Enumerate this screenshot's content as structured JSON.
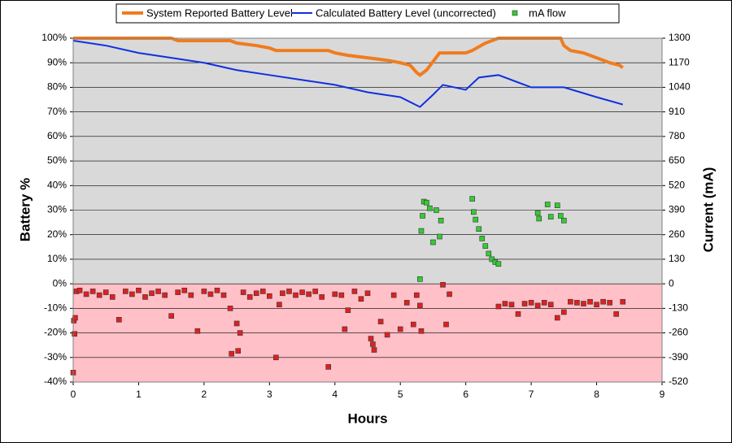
{
  "chart_data": {
    "type": "line",
    "xlabel": "Hours",
    "ylabel": "Battery %",
    "y2label": "Current (mA)",
    "xlim": [
      0,
      9
    ],
    "xticks": [
      0,
      1,
      2,
      3,
      4,
      5,
      6,
      7,
      8,
      9
    ],
    "ylim": [
      -40,
      100
    ],
    "yticks": [
      {
        "value": -40,
        "label": "-40%"
      },
      {
        "value": -30,
        "label": "-30%"
      },
      {
        "value": -20,
        "label": "-20%"
      },
      {
        "value": -10,
        "label": "-10%"
      },
      {
        "value": 0,
        "label": "0%"
      },
      {
        "value": 10,
        "label": "10%"
      },
      {
        "value": 20,
        "label": "20%"
      },
      {
        "value": 30,
        "label": "30%"
      },
      {
        "value": 40,
        "label": "40%"
      },
      {
        "value": 50,
        "label": "50%"
      },
      {
        "value": 60,
        "label": "60%"
      },
      {
        "value": 70,
        "label": "70%"
      },
      {
        "value": 80,
        "label": "80%"
      },
      {
        "value": 90,
        "label": "90%"
      },
      {
        "value": 100,
        "label": "100%"
      }
    ],
    "y2lim": [
      -520,
      1300
    ],
    "y2ticks": [
      -520,
      -390,
      -260,
      -130,
      0,
      130,
      260,
      390,
      520,
      650,
      780,
      910,
      1040,
      1170,
      1300
    ],
    "grid": true,
    "legend": "top",
    "series": [
      {
        "name": "System Reported Battery Level",
        "type": "line",
        "color": "#f07c1e",
        "x": [
          0,
          0.5,
          1,
          1.5,
          1.6,
          2,
          2.4,
          2.5,
          2.8,
          3.0,
          3.1,
          3.5,
          3.9,
          4.0,
          4.2,
          4.5,
          4.8,
          5.0,
          5.15,
          5.25,
          5.3,
          5.4,
          5.6,
          6.0,
          6.1,
          6.3,
          6.5,
          7.0,
          7.45,
          7.5,
          7.6,
          7.8,
          8.0,
          8.2,
          8.35,
          8.4
        ],
        "values": [
          100,
          100,
          100,
          100,
          99,
          99,
          99,
          98,
          97,
          96,
          95,
          95,
          95,
          94,
          93,
          92,
          91,
          90,
          89,
          86,
          85,
          87,
          94,
          94,
          95,
          98,
          100,
          100,
          100,
          97,
          95,
          94,
          92,
          90,
          89,
          88
        ]
      },
      {
        "name": "Calculated Battery Level (uncorrected)",
        "type": "line",
        "color": "#1030e0",
        "x": [
          0,
          0.5,
          1,
          1.5,
          2,
          2.5,
          3,
          3.5,
          4,
          4.5,
          5,
          5.3,
          5.5,
          5.65,
          6.0,
          6.2,
          6.5,
          7.0,
          7.3,
          7.5,
          8.0,
          8.4
        ],
        "values": [
          99,
          97,
          94,
          92,
          90,
          87,
          85,
          83,
          81,
          78,
          76,
          72,
          77,
          81,
          79,
          84,
          85,
          80,
          80,
          80,
          76,
          73
        ]
      },
      {
        "name": "mA flow",
        "type": "scatter",
        "axis": "y2",
        "color": "#33cc33",
        "negative_color": "#e02020",
        "x": [
          0,
          0.01,
          0.02,
          0.03,
          0.05,
          0.1,
          0.2,
          0.3,
          0.4,
          0.5,
          0.6,
          0.7,
          0.8,
          0.9,
          1.0,
          1.1,
          1.2,
          1.3,
          1.4,
          1.5,
          1.6,
          1.7,
          1.8,
          1.9,
          2.0,
          2.1,
          2.2,
          2.3,
          2.4,
          2.42,
          2.5,
          2.52,
          2.55,
          2.6,
          2.7,
          2.8,
          2.9,
          3.0,
          3.1,
          3.15,
          3.2,
          3.3,
          3.4,
          3.5,
          3.6,
          3.7,
          3.8,
          3.9,
          4.0,
          4.1,
          4.15,
          4.2,
          4.3,
          4.4,
          4.5,
          4.55,
          4.58,
          4.6,
          4.7,
          4.8,
          4.9,
          5.0,
          5.1,
          5.2,
          5.25,
          5.3,
          5.32,
          5.3,
          5.32,
          5.34,
          5.36,
          5.4,
          5.45,
          5.5,
          5.55,
          5.6,
          5.62,
          5.65,
          5.7,
          5.75,
          6.1,
          6.12,
          6.15,
          6.2,
          6.25,
          6.3,
          6.35,
          6.4,
          6.45,
          6.5,
          6.5,
          6.6,
          6.7,
          6.8,
          6.9,
          7.0,
          7.1,
          7.2,
          7.3,
          7.4,
          7.5,
          7.6,
          7.7,
          7.8,
          7.9,
          8.0,
          8.1,
          8.2,
          8.3,
          8.4,
          7.1,
          7.12,
          7.25,
          7.3,
          7.4,
          7.45,
          7.5
        ],
        "values": [
          -470,
          -195,
          -265,
          -180,
          -40,
          -35,
          -55,
          -40,
          -60,
          -45,
          -70,
          -190,
          -40,
          -55,
          -35,
          -70,
          -50,
          -40,
          -60,
          -170,
          -45,
          -35,
          -60,
          -250,
          -40,
          -55,
          -35,
          -60,
          -130,
          -370,
          -210,
          -355,
          -260,
          -45,
          -70,
          -50,
          -40,
          -65,
          -390,
          -110,
          -50,
          -40,
          -60,
          -45,
          -55,
          -40,
          -70,
          -440,
          -55,
          -60,
          -240,
          -140,
          -40,
          -80,
          -50,
          -290,
          -320,
          -350,
          -200,
          -270,
          -60,
          -240,
          -100,
          -215,
          -60,
          -115,
          -250,
          25,
          280,
          360,
          435,
          430,
          400,
          220,
          390,
          250,
          335,
          -5,
          -215,
          -55,
          450,
          380,
          340,
          290,
          240,
          200,
          160,
          130,
          115,
          105,
          -120,
          -105,
          -110,
          -160,
          -105,
          -100,
          -115,
          -100,
          -110,
          -180,
          -150,
          -95,
          -100,
          -105,
          -95,
          -110,
          -95,
          -100,
          -160,
          -95,
          375,
          345,
          420,
          355,
          415,
          360,
          335
        ]
      }
    ]
  }
}
